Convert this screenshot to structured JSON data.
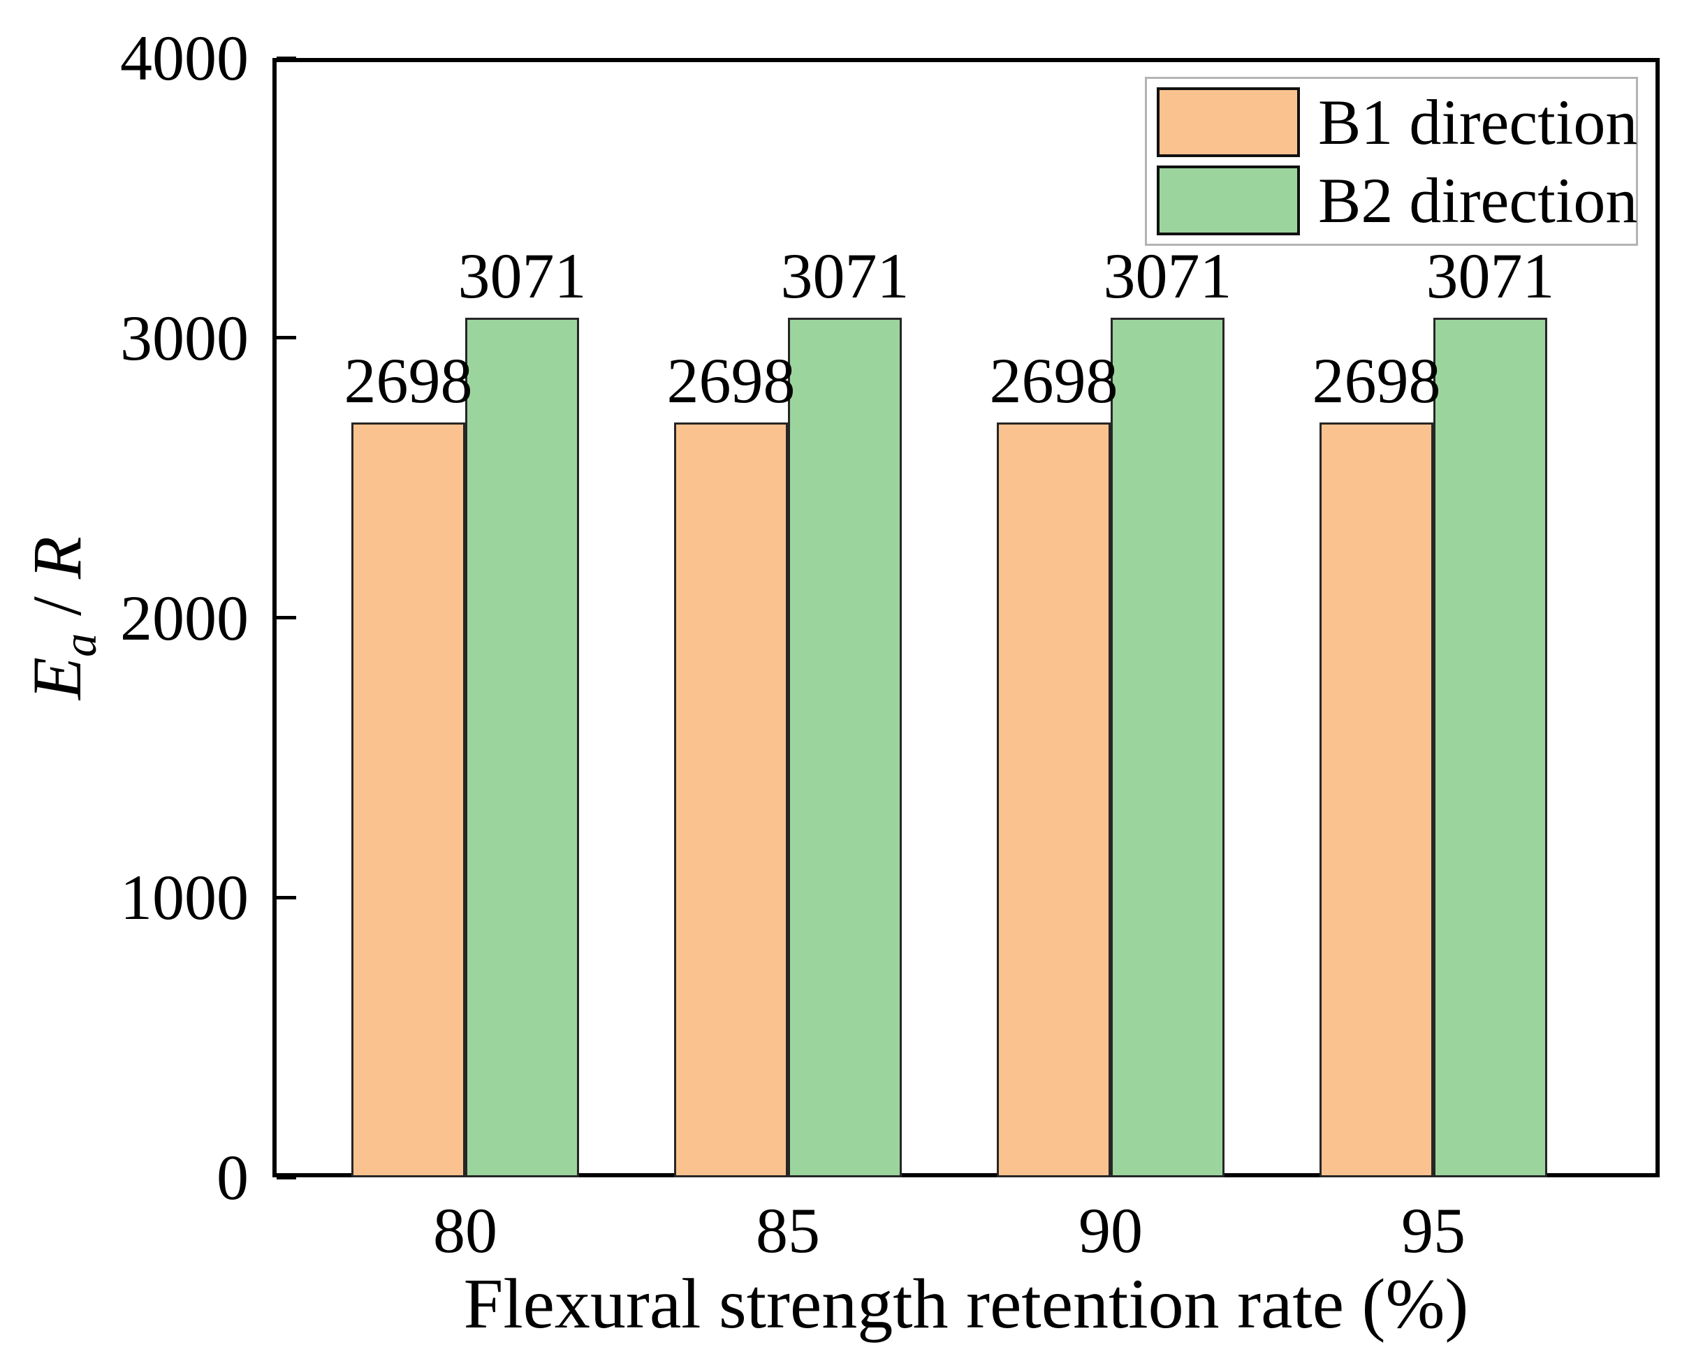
{
  "chart_data": {
    "type": "bar",
    "categories": [
      "80",
      "85",
      "90",
      "95"
    ],
    "series": [
      {
        "name": "B1 direction",
        "color": "#FAC28E",
        "values": [
          2698,
          2698,
          2698,
          2698
        ]
      },
      {
        "name": "B2 direction",
        "color": "#9CD49E",
        "values": [
          3071,
          3071,
          3071,
          3071
        ]
      }
    ],
    "bar_value_labels": {
      "B1 direction": [
        "2698",
        "2698",
        "2698",
        "2698"
      ],
      "B2 direction": [
        "3071",
        "3071",
        "3071",
        "3071"
      ]
    },
    "xlabel": "Flexural strength retention rate (%)",
    "ylabel": "Ea / R",
    "ylabel_parts": {
      "base": "E",
      "sub": "a",
      "sep": " / ",
      "rest": "R"
    },
    "ylim": [
      0,
      4000
    ],
    "yticks": [
      0,
      1000,
      2000,
      3000,
      4000
    ],
    "grid": false,
    "legend_position": "top-right",
    "colors": {
      "axis": "#000000",
      "text": "#000000",
      "bar_edge": "#262626",
      "legend_border": "#b3b3b3",
      "background": "#ffffff"
    }
  }
}
